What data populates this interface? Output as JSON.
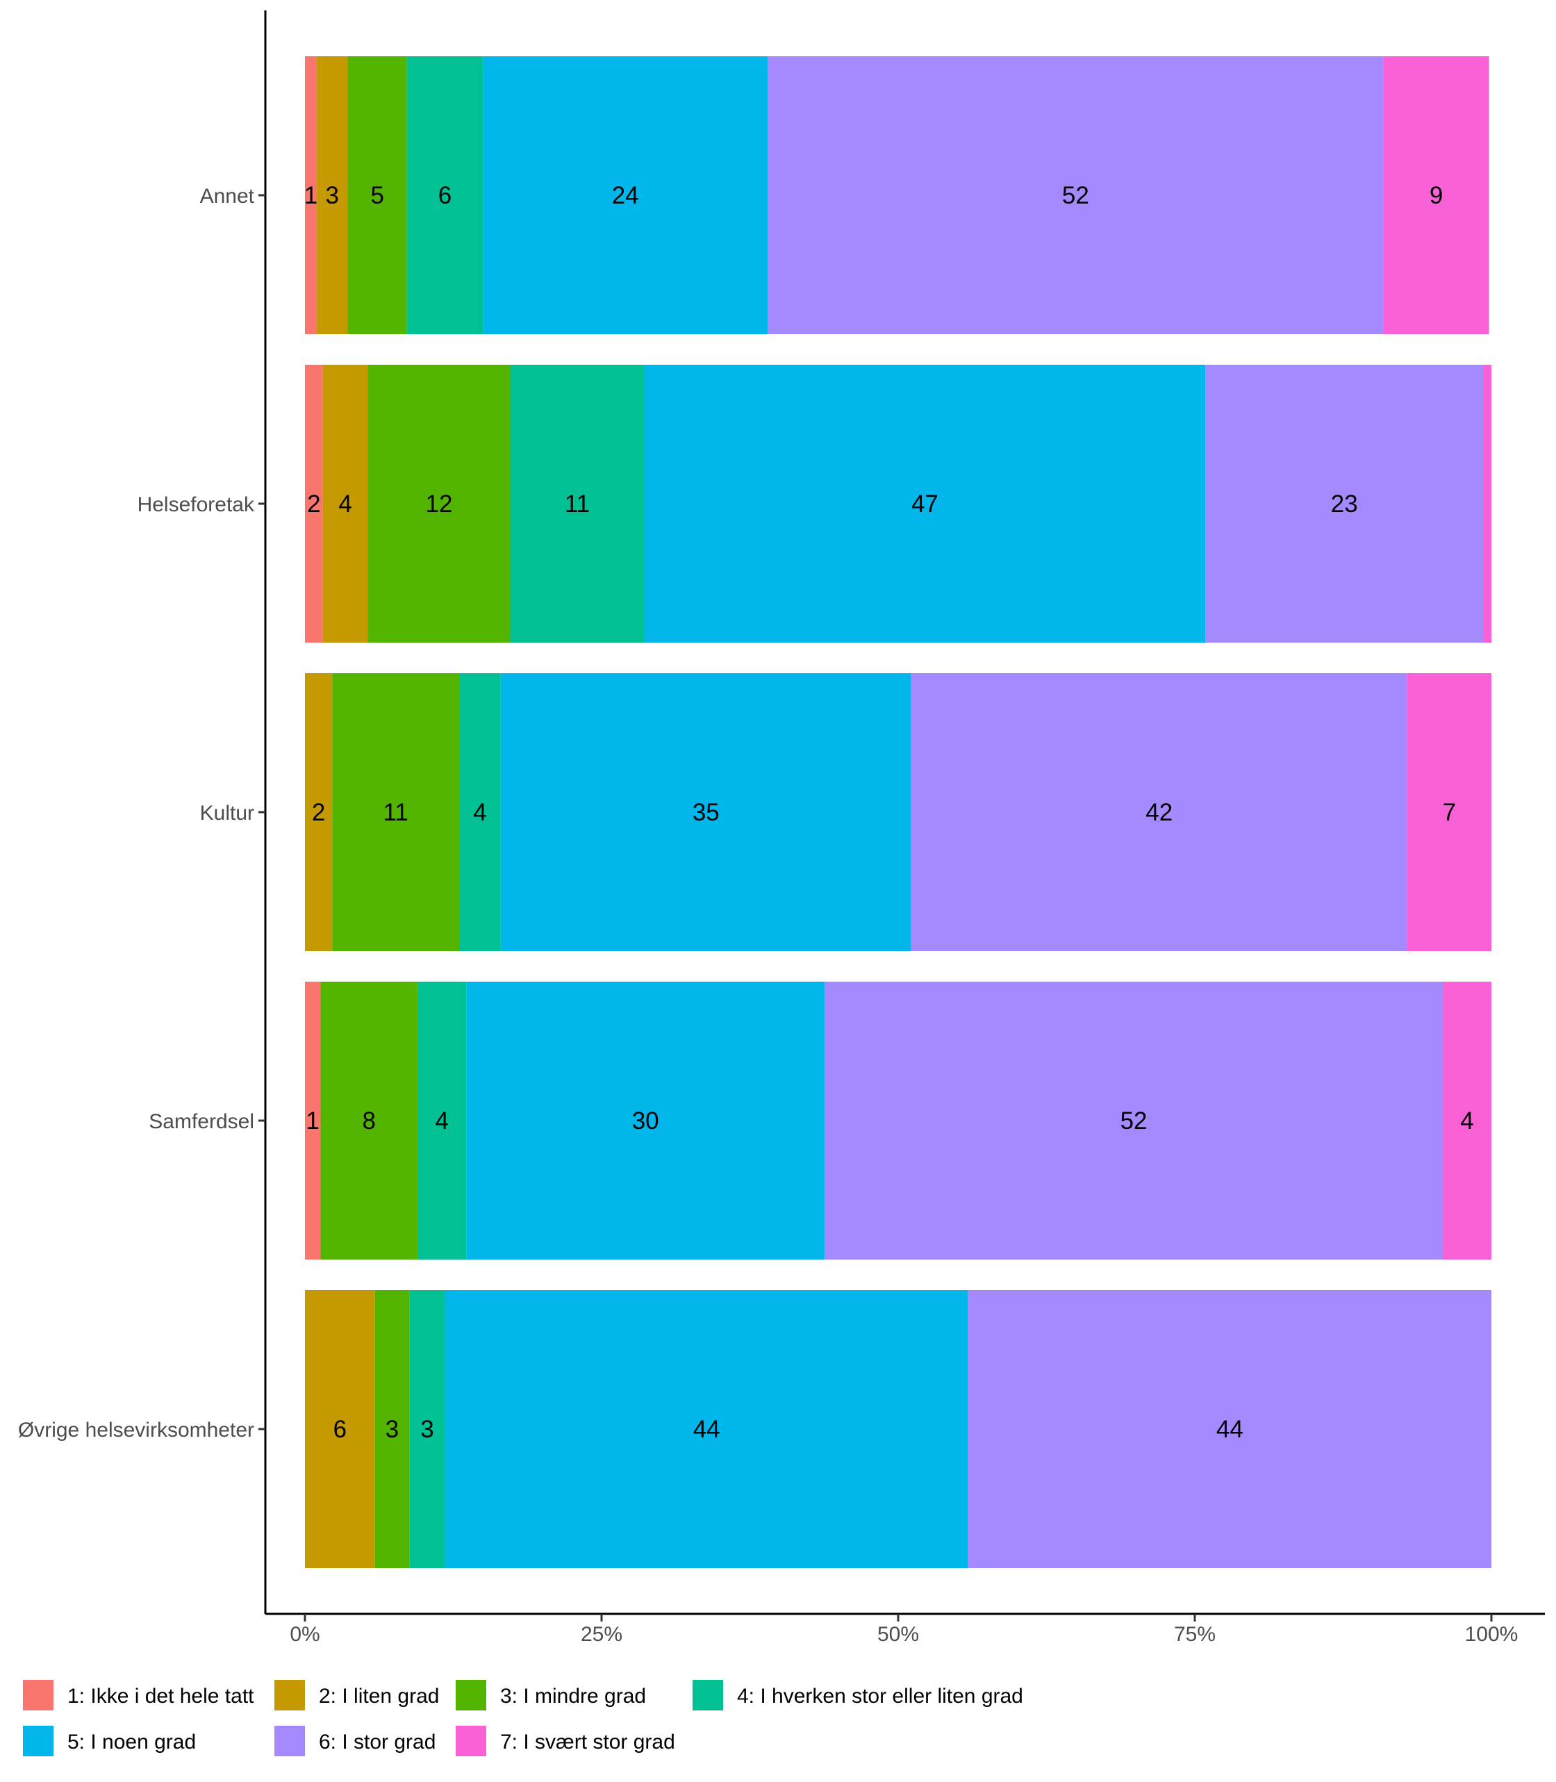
{
  "chart_data": {
    "type": "bar",
    "orientation": "horizontal",
    "stacked": true,
    "normalized": true,
    "categories": [
      "Annet",
      "Helseforetak",
      "Kultur",
      "Samferdsel",
      "Øvrige helsevirksomheter"
    ],
    "series": [
      {
        "name": "1: Ikke i det hele tatt",
        "color": "#F8766D",
        "values": [
          1,
          1.5,
          0,
          1.3,
          0
        ],
        "labels": [
          "1",
          "2",
          "",
          "1",
          ""
        ]
      },
      {
        "name": "2: I liten grad",
        "color": "#C49A00",
        "values": [
          2.6,
          3.8,
          2.3,
          0,
          5.9
        ],
        "labels": [
          "3",
          "4",
          "2",
          "",
          "6"
        ]
      },
      {
        "name": "3: I mindre grad",
        "color": "#53B400",
        "values": [
          5.0,
          12.0,
          10.7,
          8.2,
          2.9
        ],
        "labels": [
          "5",
          "12",
          "11",
          "8",
          "3"
        ]
      },
      {
        "name": "4: I hverken stor eller liten grad",
        "color": "#00C094",
        "values": [
          6.4,
          11.3,
          3.5,
          4.1,
          3.0
        ],
        "labels": [
          "6",
          "11",
          "4",
          "4",
          "3"
        ]
      },
      {
        "name": "5: I noen grad",
        "color": "#00B6EB",
        "values": [
          24.0,
          47.3,
          34.6,
          30.2,
          44.1
        ],
        "labels": [
          "24",
          "47",
          "35",
          "30",
          "44"
        ]
      },
      {
        "name": "6: I stor grad",
        "color": "#A58AFF",
        "values": [
          51.9,
          23.4,
          41.8,
          52.1,
          44.1
        ],
        "labels": [
          "52",
          "23",
          "42",
          "52",
          "44"
        ]
      },
      {
        "name": "7: I svært stor grad",
        "color": "#FB61D7",
        "values": [
          8.9,
          0.7,
          7.1,
          4.1,
          0
        ],
        "labels": [
          "9",
          "",
          "7",
          "4",
          ""
        ]
      }
    ],
    "xaxis": {
      "ticks": [
        "0%",
        "25%",
        "50%",
        "75%",
        "100%"
      ],
      "tick_values": [
        0,
        25,
        50,
        75,
        100
      ],
      "xlim": [
        0,
        100
      ]
    },
    "legend_position": "bottom",
    "grid": false
  }
}
